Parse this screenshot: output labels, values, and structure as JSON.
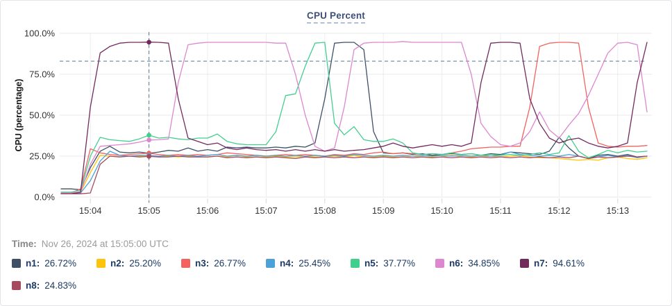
{
  "panel": {
    "title": "CPU Percent"
  },
  "time_row": {
    "label": "Time:",
    "value": "Nov 26, 2024 at 15:05:00 UTC"
  },
  "chart_data": {
    "type": "line",
    "title": "CPU Percent",
    "xlabel": "",
    "ylabel": "CPU (percentage)",
    "ylim": [
      0,
      100
    ],
    "grid": true,
    "legend_position": "bottom",
    "y_tick_labels": [
      "100.0%",
      "75.0%",
      "50.0%",
      "25.0%",
      "0.0%"
    ],
    "y_tick_values": [
      100,
      75,
      50,
      25,
      0
    ],
    "x_tick_labels": [
      "15:04",
      "15:05",
      "15:06",
      "15:07",
      "15:08",
      "15:09",
      "15:10",
      "15:11",
      "15:12",
      "15:13"
    ],
    "x_start_time": "15:03:30",
    "x_end_time": "15:13:30",
    "sample_interval_seconds": 10,
    "threshold_dashed_line_percent": 83,
    "cursor": {
      "time_label": "15:05",
      "sample_index": 9
    },
    "crosshair_color": "#4e7b94",
    "series": [
      {
        "name": "n1",
        "color": "#3e4f66",
        "cursor_value": 26.72,
        "cursor_value_label": "26.72%",
        "values": [
          5,
          5,
          4.5,
          18,
          28,
          31,
          27.5,
          27,
          27.5,
          26.72,
          27.5,
          28.5,
          28,
          30,
          28,
          29,
          28,
          30.5,
          30,
          30.5,
          30,
          30,
          30.5,
          30,
          31,
          30.5,
          33,
          60,
          94,
          94.5,
          94.5,
          90,
          40,
          27,
          26.5,
          27,
          26,
          26.5,
          25.5,
          26,
          26.5,
          26,
          26.5,
          25.5,
          26.5,
          26,
          27.5,
          27,
          26.5,
          26,
          28,
          36.5,
          30,
          25,
          23.5,
          25.5,
          26,
          25,
          26,
          24.5,
          25
        ]
      },
      {
        "name": "n2",
        "color": "#fdc40d",
        "cursor_value": 25.2,
        "cursor_value_label": "25.20%",
        "values": [
          2,
          2,
          3,
          15,
          25.5,
          25,
          24.5,
          25,
          25,
          25.2,
          24.5,
          25,
          24.5,
          25,
          24.5,
          24.5,
          25,
          24.5,
          25.5,
          24.5,
          24.5,
          24.5,
          25,
          24.5,
          24.5,
          25,
          24.5,
          24.5,
          25,
          24.5,
          25.5,
          24.5,
          24.5,
          25,
          24.5,
          24.5,
          25,
          24.5,
          24.5,
          24.5,
          25.5,
          24.5,
          24.5,
          24.5,
          25,
          24.5,
          25,
          25.5,
          24.5,
          24,
          24,
          23.5,
          23,
          22.5,
          23,
          22.5,
          24,
          24.5,
          23.5,
          23,
          24
        ]
      },
      {
        "name": "n3",
        "color": "#f2635f",
        "cursor_value": 26.77,
        "cursor_value_label": "26.77%",
        "values": [
          2,
          2.5,
          5,
          29.5,
          27,
          26,
          25.5,
          26,
          26.5,
          26.77,
          26,
          25.5,
          26,
          25.5,
          26,
          25.5,
          26,
          27,
          26.5,
          26,
          25.5,
          25,
          25.5,
          26,
          25.5,
          26,
          25.5,
          25,
          26,
          25.5,
          26.5,
          26,
          27,
          27.5,
          26.5,
          27,
          26.5,
          26,
          26.5,
          26,
          27,
          28,
          29.5,
          30,
          30.5,
          30.5,
          31,
          31,
          55,
          92,
          94,
          94.5,
          94.5,
          94,
          55,
          33,
          31,
          30.5,
          31,
          31,
          31.5
        ]
      },
      {
        "name": "n4",
        "color": "#4da1d9",
        "cursor_value": 25.45,
        "cursor_value_label": "25.45%",
        "values": [
          2,
          2,
          2.5,
          10,
          22,
          28,
          25.5,
          25,
          25.5,
          25.45,
          25,
          25.5,
          25,
          25.5,
          25,
          25.5,
          26,
          25,
          25.5,
          25,
          25.5,
          25,
          25.5,
          25,
          25.5,
          25,
          25.5,
          25,
          25.5,
          25,
          26,
          25.5,
          25,
          25.5,
          25,
          25.5,
          25,
          25.5,
          25,
          25.5,
          25,
          25.5,
          25,
          25.5,
          25,
          25.5,
          27.5,
          26,
          25.5,
          25,
          25.5,
          25,
          26,
          25,
          23.5,
          24.5,
          25.5,
          24.5,
          25.5,
          24,
          25
        ]
      },
      {
        "name": "n5",
        "color": "#41cf8e",
        "cursor_value": 37.77,
        "cursor_value_label": "37.77%",
        "values": [
          3,
          3,
          4,
          25,
          36.5,
          35,
          34.5,
          34,
          35.5,
          37.77,
          36,
          36.5,
          35.5,
          35,
          36,
          36,
          38.5,
          34,
          32.5,
          32,
          32,
          32,
          40,
          62,
          63,
          80,
          94,
          94.5,
          45,
          38,
          43,
          35,
          34,
          34,
          35.5,
          33,
          27,
          26,
          26.5,
          26,
          27,
          26,
          26.5,
          25.5,
          26,
          25.5,
          26,
          25.5,
          26,
          27,
          26,
          27,
          37.5,
          28,
          24,
          26,
          28.5,
          27,
          28.5,
          27.5,
          28
        ]
      },
      {
        "name": "n6",
        "color": "#dd87cf",
        "cursor_value": 34.85,
        "cursor_value_label": "34.85%",
        "values": [
          2.5,
          2.5,
          3,
          20,
          31,
          31.5,
          32,
          32.5,
          33.5,
          34.85,
          35,
          35.5,
          70,
          93,
          94,
          94.5,
          94.5,
          94.5,
          94.5,
          94.5,
          94.5,
          94.5,
          94,
          94,
          75,
          50,
          31,
          28,
          30,
          55,
          90,
          94,
          94.5,
          94.5,
          94.5,
          95,
          94.5,
          94.5,
          94.5,
          94.5,
          94.5,
          94.5,
          75,
          45,
          37,
          32,
          31,
          33,
          40,
          52,
          41,
          36,
          44,
          51,
          62,
          75,
          88,
          94,
          94.5,
          93,
          52
        ]
      },
      {
        "name": "n7",
        "color": "#722a5c",
        "cursor_value": 94.61,
        "cursor_value_label": "94.61%",
        "values": [
          2,
          2,
          3,
          55,
          88,
          92,
          94,
          94.5,
          94.5,
          94.61,
          94.5,
          94,
          60,
          36,
          34,
          32,
          33,
          30,
          29,
          30,
          29,
          28.5,
          29,
          28,
          29,
          28,
          29,
          28,
          29,
          28,
          28.5,
          29,
          30,
          31,
          33,
          31,
          30,
          31,
          32,
          31,
          32,
          31,
          33,
          70,
          94,
          94.5,
          94.5,
          94,
          60,
          45,
          36,
          33,
          35,
          36,
          33,
          31,
          30,
          31,
          33,
          70,
          94.5
        ]
      },
      {
        "name": "n8",
        "color": "#a74a60",
        "cursor_value": 24.83,
        "cursor_value_label": "24.83%",
        "values": [
          2,
          2,
          2,
          2.5,
          20,
          25,
          24.5,
          25,
          24.5,
          24.83,
          24.5,
          24.5,
          25,
          24.5,
          24.5,
          24.5,
          25,
          24,
          24.5,
          24,
          24.5,
          24,
          24.5,
          24,
          23.5,
          24.5,
          24,
          24.5,
          24,
          24.5,
          24,
          24.5,
          24,
          24.5,
          24,
          24.5,
          24,
          24.5,
          24,
          24.5,
          24,
          24.5,
          24,
          24.5,
          24,
          24.5,
          24,
          24.5,
          24,
          24.5,
          24,
          24.5,
          24,
          25,
          23.5,
          24.5,
          24,
          24.5,
          25,
          24.5,
          25
        ]
      }
    ]
  }
}
